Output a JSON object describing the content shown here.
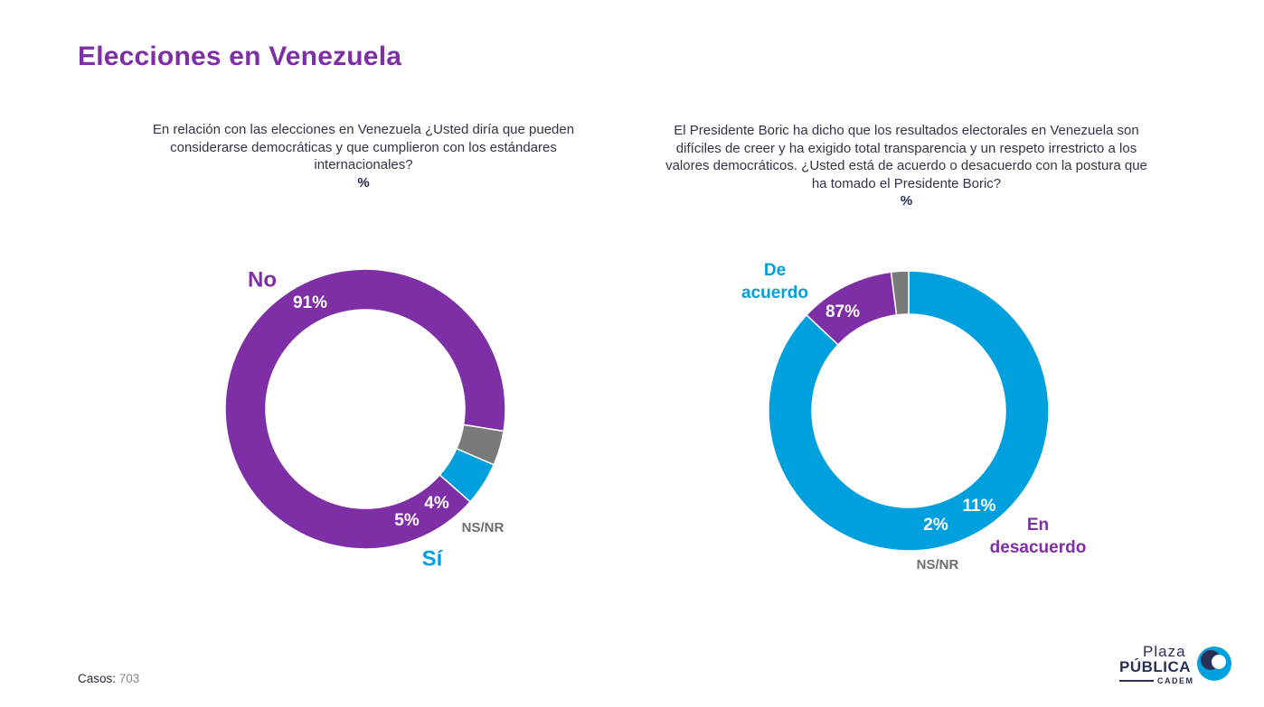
{
  "page": {
    "title": "Elecciones en Venezuela",
    "footer_label": "Casos",
    "footer_value": "703",
    "logo": {
      "top": "Plaza",
      "main": "PÚBLICA",
      "sub": "CADEM"
    }
  },
  "colors": {
    "purple": "#7e2fa6",
    "blue": "#00a0de",
    "gray": "#7a7a7a"
  },
  "chart_data": [
    {
      "type": "pie",
      "variant": "donut",
      "question": "En relación con las elecciones en Venezuela ¿Usted diría que pueden considerarse democráticas y que cumplieron con los estándares internacionales?",
      "unit": "%",
      "slices": [
        {
          "label": "No",
          "value": 91,
          "value_label": "91%",
          "color": "#7e2fa6"
        },
        {
          "label": "NS/NR",
          "value": 4,
          "value_label": "4%",
          "color": "#7a7a7a"
        },
        {
          "label": "Sí",
          "value": 5,
          "value_label": "5%",
          "color": "#00a0de"
        }
      ]
    },
    {
      "type": "pie",
      "variant": "donut",
      "question": "El Presidente Boric ha dicho que los resultados electorales en Venezuela son difíciles de creer y ha exigido total transparencia y un respeto irrestricto a los valores democráticos. ¿Usted está de acuerdo o desacuerdo con la postura que ha tomado el Presidente Boric?",
      "unit": "%",
      "slices": [
        {
          "label": "De acuerdo",
          "value": 87,
          "value_label": "87%",
          "color": "#00a0de"
        },
        {
          "label": "En desacuerdo",
          "value": 11,
          "value_label": "11%",
          "color": "#7e2fa6"
        },
        {
          "label": "NS/NR",
          "value": 2,
          "value_label": "2%",
          "color": "#7a7a7a"
        }
      ]
    }
  ]
}
